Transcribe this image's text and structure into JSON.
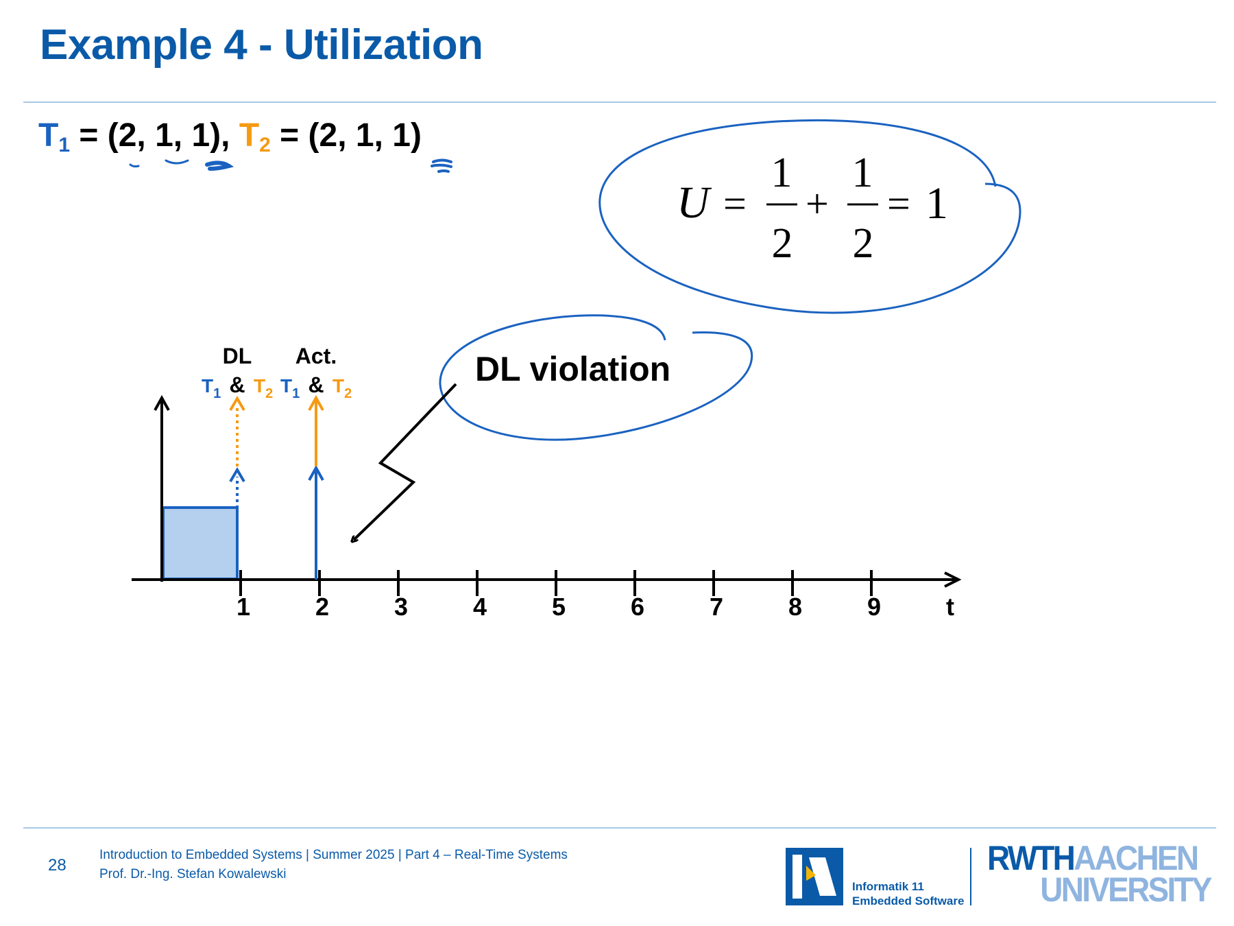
{
  "slide": {
    "title": "Example 4 - Utilization",
    "page_number": "28"
  },
  "tasks": {
    "t1_label": "T",
    "t1_sub": "1",
    "t1_params": "= (2, 1, 1),",
    "t2_label": "T",
    "t2_sub": "2",
    "t2_params": "= (2, 1, 1)"
  },
  "formula": {
    "lhs": "U",
    "eq": "=",
    "num1": "1",
    "den1": "2",
    "plus": "+",
    "num2": "1",
    "den2": "2",
    "eq2": "=",
    "result": "1"
  },
  "annotation": {
    "violation_text": "DL violation"
  },
  "timeline": {
    "dl_label": "DL",
    "act_label": "Act.",
    "task1": "T",
    "task1_sub": "1",
    "task2": "T",
    "task2_sub": "2",
    "amp": "&",
    "ticks": [
      "1",
      "2",
      "3",
      "4",
      "5",
      "6",
      "7",
      "8",
      "9"
    ],
    "axis_label": "t"
  },
  "colors": {
    "title_blue": "#0a5aa8",
    "task1_blue": "#1a62c0",
    "task2_orange": "#f59a14",
    "execution_fill": "#b4d0ee"
  },
  "footer": {
    "line1": "Introduction to Embedded Systems | Summer 2025 | Part 4 – Real-Time Systems",
    "line2": "Prof. Dr.-Ing. Stefan Kowalewski",
    "institute_line1": "Informatik 11",
    "institute_line2": "Embedded Software",
    "university_a": "RWTH",
    "university_b": "AACHEN",
    "university_c": "UNIVERSITY"
  }
}
